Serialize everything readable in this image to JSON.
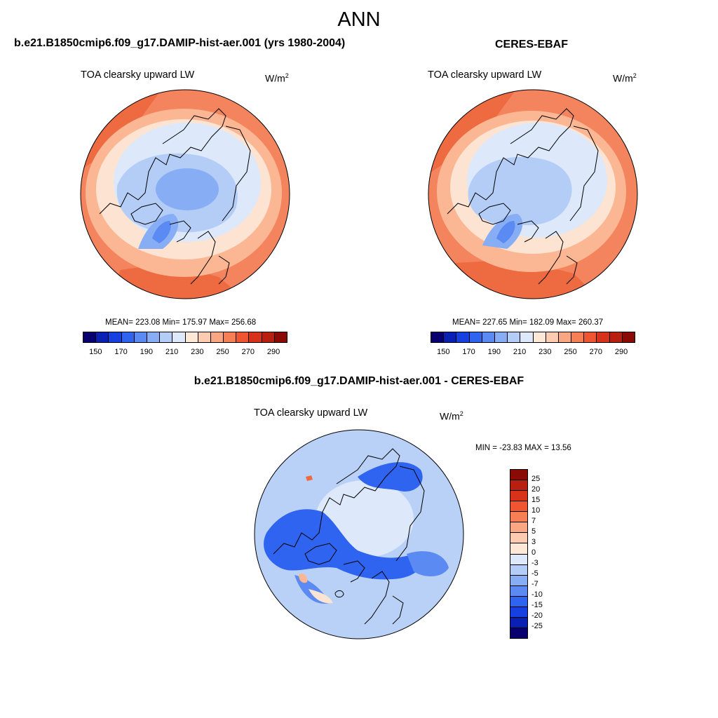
{
  "figure": {
    "title": "ANN"
  },
  "panels": {
    "model": {
      "title": "b.e21.B1850cmip6.f09_g17.DAMIP-hist-aer.001 (yrs 1980-2004)",
      "variable": "TOA clearsky upward LW",
      "units_base": "W/m",
      "units_exp": "2",
      "stats": "MEAN= 223.08  Min= 175.97  Max= 256.68"
    },
    "obs": {
      "title": "CERES-EBAF",
      "variable": "TOA clearsky upward LW",
      "units_base": "W/m",
      "units_exp": "2",
      "stats": "MEAN= 227.65  Min= 182.09  Max= 260.37"
    },
    "diff": {
      "title": "b.e21.B1850cmip6.f09_g17.DAMIP-hist-aer.001 - CERES-EBAF",
      "variable": "TOA clearsky upward LW",
      "units_base": "W/m",
      "units_exp": "2",
      "stats": "MIN = -23.83 MAX =  13.56"
    }
  },
  "colorbar_abs": {
    "tick_labels": [
      "150",
      "170",
      "190",
      "210",
      "230",
      "250",
      "270",
      "290"
    ],
    "colors": [
      "#08006e",
      "#0a1fb4",
      "#1640e0",
      "#2f64f0",
      "#5a8af2",
      "#87aef5",
      "#b4cdf7",
      "#dde9fa",
      "#fde7d6",
      "#fccbb0",
      "#fba682",
      "#f77f56",
      "#ee5530",
      "#d8321a",
      "#b81f10",
      "#8a0a06"
    ]
  },
  "colorbar_diff": {
    "labels": [
      "25",
      "20",
      "15",
      "10",
      "7",
      "5",
      "3",
      "0",
      "-3",
      "-5",
      "-7",
      "-10",
      "-15",
      "-20",
      "-25"
    ],
    "colors": [
      "#8a0a06",
      "#b81f10",
      "#d8321a",
      "#ee5530",
      "#f77f56",
      "#fba682",
      "#fccbb0",
      "#fde7d6",
      "#dde9fa",
      "#b4cdf7",
      "#87aef5",
      "#5a8af2",
      "#2f64f0",
      "#1640e0",
      "#0a1fb4",
      "#08006e"
    ]
  },
  "map_colors": {
    "ocean_warm": "#f4845e",
    "ocean_hot": "#ee6a40",
    "mid": "#fbb793",
    "light": "#fde3d1",
    "cool1": "#dde9fa",
    "cool2": "#b4cdf7",
    "cool3": "#87aef5",
    "cool4": "#5a8af2",
    "diff_bg": "#b9d0f7",
    "diff_dark": "#2f64f0",
    "diff_mid": "#5a8af2",
    "diff_light": "#dde9fa"
  }
}
